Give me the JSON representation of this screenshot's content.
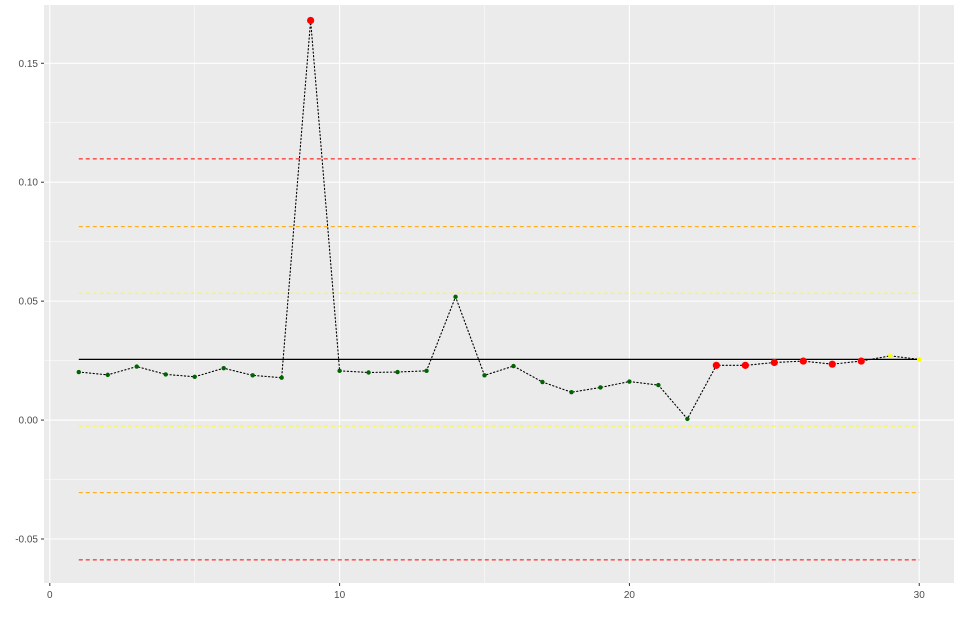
{
  "chart_data": {
    "type": "line",
    "title": "",
    "xlabel": "",
    "ylabel": "",
    "xlim": [
      -0.2,
      31.2
    ],
    "ylim": [
      -0.0685,
      0.1745
    ],
    "x_ticks": [
      0,
      10,
      20,
      30
    ],
    "x_tick_labels": [
      "0",
      "10",
      "20",
      "30"
    ],
    "y_ticks": [
      -0.05,
      0.0,
      0.05,
      0.1,
      0.15
    ],
    "y_tick_labels": [
      "-0.05",
      "0.00",
      "0.05",
      "0.10",
      "0.15"
    ],
    "grid": true,
    "panel_background": "#ebebeb",
    "grid_color": "#ffffff",
    "series": [
      {
        "line_style": "dotted",
        "line_color": "#000000",
        "points": [
          {
            "x": 1,
            "y": 0.0202,
            "color": "#006400"
          },
          {
            "x": 2,
            "y": 0.019,
            "color": "#006400"
          },
          {
            "x": 3,
            "y": 0.0225,
            "color": "#006400"
          },
          {
            "x": 4,
            "y": 0.0192,
            "color": "#006400"
          },
          {
            "x": 5,
            "y": 0.0182,
            "color": "#006400"
          },
          {
            "x": 6,
            "y": 0.0218,
            "color": "#006400"
          },
          {
            "x": 7,
            "y": 0.0188,
            "color": "#006400"
          },
          {
            "x": 8,
            "y": 0.0178,
            "color": "#006400"
          },
          {
            "x": 9,
            "y": 0.168,
            "color": "#ff0000"
          },
          {
            "x": 10,
            "y": 0.0207,
            "color": "#006400"
          },
          {
            "x": 11,
            "y": 0.02,
            "color": "#006400"
          },
          {
            "x": 12,
            "y": 0.0202,
            "color": "#006400"
          },
          {
            "x": 13,
            "y": 0.0207,
            "color": "#006400"
          },
          {
            "x": 14,
            "y": 0.0518,
            "color": "#006400"
          },
          {
            "x": 15,
            "y": 0.0188,
            "color": "#006400"
          },
          {
            "x": 16,
            "y": 0.0227,
            "color": "#006400"
          },
          {
            "x": 17,
            "y": 0.016,
            "color": "#006400"
          },
          {
            "x": 18,
            "y": 0.0117,
            "color": "#006400"
          },
          {
            "x": 19,
            "y": 0.0137,
            "color": "#006400"
          },
          {
            "x": 20,
            "y": 0.0162,
            "color": "#006400"
          },
          {
            "x": 21,
            "y": 0.0147,
            "color": "#006400"
          },
          {
            "x": 22,
            "y": 0.0005,
            "color": "#006400"
          },
          {
            "x": 23,
            "y": 0.023,
            "color": "#ff0000"
          },
          {
            "x": 24,
            "y": 0.023,
            "color": "#ff0000"
          },
          {
            "x": 25,
            "y": 0.0242,
            "color": "#ff0000"
          },
          {
            "x": 26,
            "y": 0.0248,
            "color": "#ff0000"
          },
          {
            "x": 27,
            "y": 0.0235,
            "color": "#ff0000"
          },
          {
            "x": 28,
            "y": 0.0248,
            "color": "#ff0000"
          },
          {
            "x": 29,
            "y": 0.027,
            "color": "#ffff00"
          },
          {
            "x": 30,
            "y": 0.0255,
            "color": "#ffff00"
          }
        ]
      }
    ],
    "reference_lines": [
      {
        "y": 0.0255,
        "color": "#000000",
        "style": "solid",
        "x_from": 1,
        "x_to": 30
      },
      {
        "y": 0.1098,
        "color": "#ff0000",
        "style": "dashed",
        "x_from": 1,
        "x_to": 30
      },
      {
        "y": 0.0813,
        "color": "#ffa500",
        "style": "dashed",
        "x_from": 1,
        "x_to": 30
      },
      {
        "y": 0.0533,
        "color": "#ffff00",
        "style": "dashed",
        "x_from": 1,
        "x_to": 30
      },
      {
        "y": -0.0025,
        "color": "#ffff00",
        "style": "dashed",
        "x_from": 1,
        "x_to": 30
      },
      {
        "y": -0.0305,
        "color": "#ffa500",
        "style": "dashed",
        "x_from": 1,
        "x_to": 30
      },
      {
        "y": -0.0588,
        "color": "#ff0000",
        "style": "dashed",
        "x_from": 1,
        "x_to": 30
      }
    ]
  }
}
